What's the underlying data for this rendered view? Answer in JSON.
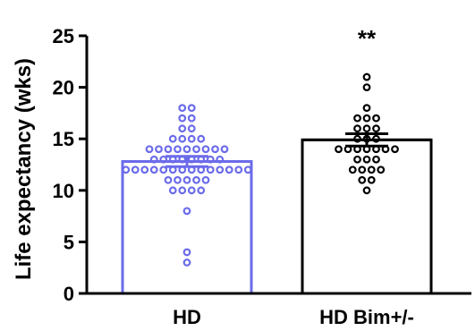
{
  "chart_data": {
    "type": "bar",
    "ylabel": "Life expectancy (wks)",
    "ylim": [
      0,
      25
    ],
    "yticks": [
      0,
      5,
      10,
      15,
      20,
      25
    ],
    "ytick_labels": [
      "0",
      "5",
      "10",
      "15",
      "20",
      "25"
    ],
    "categories": [
      "HD",
      "HD Bim+/-"
    ],
    "values": [
      12.8,
      14.9
    ],
    "sem": [
      0.5,
      0.6
    ],
    "colors": [
      "#6b6bea",
      "#000000"
    ],
    "marker_fill": [
      "#ffffff",
      "#ffffff"
    ],
    "significance": [
      "",
      "**"
    ],
    "points": [
      [
        3,
        4,
        8,
        10,
        10,
        10,
        10,
        11,
        11,
        11,
        11,
        11,
        12,
        12,
        12,
        12,
        12,
        12,
        12,
        12,
        12,
        12,
        12,
        12,
        12,
        12,
        13,
        13,
        13,
        13,
        13,
        13,
        13,
        13,
        14,
        14,
        14,
        14,
        14,
        14,
        14,
        14,
        14,
        15,
        15,
        15,
        15,
        16,
        16,
        17,
        17,
        18,
        18
      ],
      [
        10,
        11,
        11,
        12,
        12,
        12,
        12,
        13,
        13,
        13,
        14,
        14,
        14,
        14,
        14,
        14,
        14,
        15,
        15,
        15,
        16,
        16,
        16,
        17,
        17,
        17,
        18,
        20,
        21
      ]
    ],
    "grid": false,
    "legend": "none"
  }
}
